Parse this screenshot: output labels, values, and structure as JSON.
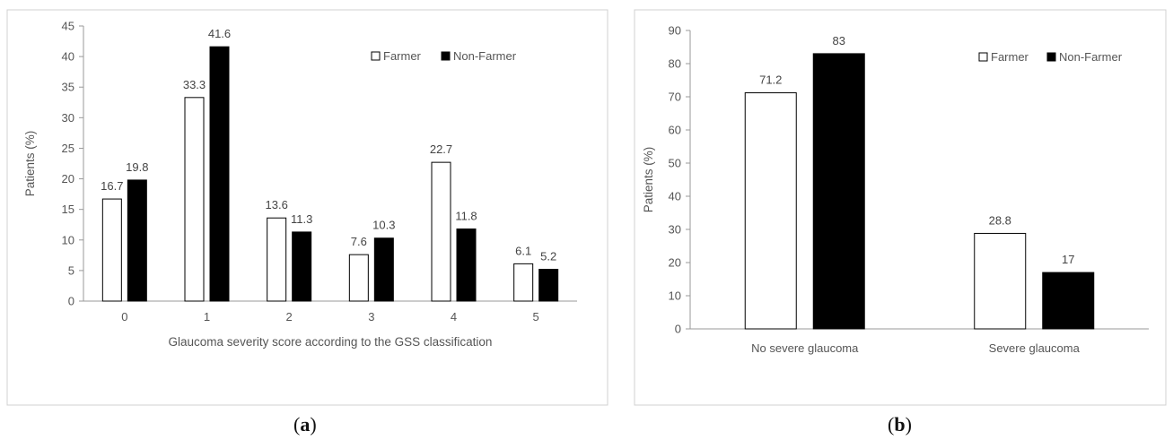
{
  "chart_data": [
    {
      "type": "bar",
      "panel_label": "a",
      "xlabel": "Glaucoma severity score according to the GSS classification",
      "ylabel": "Patients (%)",
      "ylim": [
        0,
        45
      ],
      "yticks": [
        0,
        5,
        10,
        15,
        20,
        25,
        30,
        35,
        40,
        45
      ],
      "categories": [
        "0",
        "1",
        "2",
        "3",
        "4",
        "5"
      ],
      "series": [
        {
          "name": "Farmer",
          "color": "#ffffff",
          "values": [
            16.7,
            33.3,
            13.6,
            7.6,
            22.7,
            6.1
          ]
        },
        {
          "name": "Non-Farmer",
          "color": "#000000",
          "values": [
            19.8,
            41.6,
            11.3,
            10.3,
            11.8,
            5.2
          ]
        }
      ],
      "data_labels": true,
      "grid": false,
      "legend_position": "top-right"
    },
    {
      "type": "bar",
      "panel_label": "b",
      "xlabel": "",
      "ylabel": "Patients (%)",
      "ylim": [
        0,
        90
      ],
      "yticks": [
        0,
        10,
        20,
        30,
        40,
        50,
        60,
        70,
        80,
        90
      ],
      "categories": [
        "No severe glaucoma",
        "Severe glaucoma"
      ],
      "series": [
        {
          "name": "Farmer",
          "color": "#ffffff",
          "values": [
            71.2,
            28.8
          ]
        },
        {
          "name": "Non-Farmer",
          "color": "#000000",
          "values": [
            83,
            17
          ]
        }
      ],
      "data_labels": true,
      "grid": false,
      "legend_position": "top-right"
    }
  ]
}
